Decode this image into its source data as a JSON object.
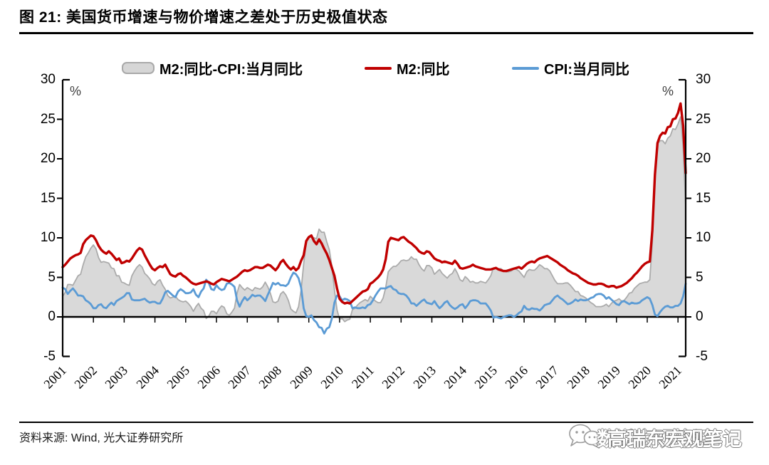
{
  "title": "图 21: 美国货币增速与物价增速之差处于历史极值状态",
  "source": "资料来源: Wind, 光大证券研究所",
  "axis_unit_left": "%",
  "axis_unit_right": "%",
  "watermark": {
    "icon": "wechat-chat-bubbles-icon",
    "layer1": "高瑞东宏观笔记",
    "layer2": "数说宏观笔记"
  },
  "legend": [
    {
      "label": "M2:同比-CPI:当月同比",
      "type": "area",
      "color": "#D6D6D6",
      "border": "#A9A9A9"
    },
    {
      "label": "M2:同比",
      "type": "line",
      "color": "#C00000"
    },
    {
      "label": "CPI:当月同比",
      "type": "line",
      "color": "#5B9BD5"
    }
  ],
  "chart_data": {
    "type": "area",
    "frequency": "monthly",
    "x_start": "2001-01",
    "x_end": "2021-04",
    "categories_years": [
      2001,
      2002,
      2003,
      2004,
      2005,
      2006,
      2007,
      2008,
      2009,
      2010,
      2011,
      2012,
      2013,
      2014,
      2015,
      2016,
      2017,
      2018,
      2019,
      2020,
      2021
    ],
    "ylim": [
      -5,
      30
    ],
    "yticks": [
      30,
      25,
      20,
      15,
      10,
      5,
      0,
      -5
    ],
    "ylabel": "%",
    "legend_position": "top",
    "grid": false,
    "series": [
      {
        "name": "M2:同比-CPI:当月同比",
        "type": "area",
        "color": "#D9D9D9",
        "border_color": "#ABABAB",
        "derived": "M2:同比 minus CPI:当月同比 (computed)"
      },
      {
        "name": "M2:同比",
        "type": "line",
        "color": "#C00000",
        "values": [
          6.3,
          6.6,
          7.0,
          7.4,
          7.6,
          7.8,
          7.9,
          8.1,
          9.2,
          9.7,
          10.0,
          10.3,
          10.2,
          9.7,
          9.0,
          8.5,
          8.2,
          8.0,
          8.3,
          8.0,
          7.6,
          7.2,
          7.4,
          6.8,
          6.9,
          7.1,
          7.0,
          7.4,
          7.9,
          8.4,
          8.7,
          8.5,
          7.8,
          7.2,
          6.6,
          6.1,
          5.9,
          6.2,
          6.4,
          6.3,
          6.6,
          6.0,
          5.4,
          5.2,
          5.1,
          5.4,
          5.5,
          5.2,
          5.0,
          4.7,
          4.4,
          4.2,
          4.1,
          4.2,
          4.3,
          4.4,
          4.5,
          4.4,
          4.2,
          4.1,
          4.4,
          4.6,
          4.8,
          4.7,
          4.6,
          4.5,
          4.7,
          4.9,
          5.1,
          5.4,
          5.7,
          5.9,
          5.8,
          5.9,
          6.1,
          6.3,
          6.3,
          6.2,
          6.2,
          6.4,
          6.6,
          6.5,
          6.2,
          5.9,
          6.3,
          6.9,
          7.2,
          6.7,
          6.3,
          6.0,
          6.3,
          5.9,
          6.2,
          7.1,
          7.8,
          9.6,
          10.1,
          10.3,
          9.6,
          9.2,
          9.8,
          9.3,
          8.6,
          8.0,
          7.2,
          6.2,
          5.2,
          3.6,
          2.3,
          1.9,
          1.7,
          1.8,
          1.7,
          2.0,
          2.3,
          2.6,
          2.9,
          3.2,
          3.3,
          3.5,
          4.2,
          4.4,
          4.7,
          5.0,
          5.4,
          6.0,
          7.3,
          9.5,
          10.0,
          9.9,
          9.8,
          9.7,
          10.0,
          10.1,
          9.8,
          9.5,
          9.3,
          9.0,
          8.7,
          8.3,
          8.1,
          8.0,
          8.3,
          8.2,
          7.8,
          7.4,
          7.2,
          7.1,
          6.9,
          7.0,
          6.9,
          6.8,
          6.7,
          7.1,
          6.7,
          6.2,
          6.1,
          6.2,
          6.3,
          6.4,
          6.6,
          6.4,
          6.3,
          6.2,
          6.1,
          6.0,
          6.0,
          6.0,
          6.1,
          6.2,
          6.0,
          5.9,
          5.8,
          5.8,
          5.9,
          6.0,
          6.1,
          6.2,
          6.3,
          6.1,
          6.4,
          6.7,
          6.9,
          7.0,
          6.9,
          7.2,
          7.4,
          7.5,
          7.6,
          7.7,
          7.5,
          7.3,
          7.1,
          6.9,
          6.6,
          6.4,
          6.2,
          5.9,
          5.7,
          5.5,
          5.4,
          5.2,
          4.9,
          4.7,
          4.5,
          4.3,
          4.2,
          4.1,
          4.1,
          4.2,
          4.2,
          4.1,
          3.9,
          3.8,
          3.9,
          3.9,
          3.7,
          3.8,
          3.9,
          4.1,
          4.3,
          4.6,
          4.9,
          5.3,
          5.6,
          6.0,
          6.4,
          6.7,
          6.9,
          7.0,
          11.0,
          18.0,
          22.0,
          22.9,
          23.3,
          23.2,
          24.0,
          24.1,
          25.0,
          25.1,
          25.8,
          27.0,
          24.2,
          18.2
        ]
      },
      {
        "name": "CPI:当月同比",
        "type": "line",
        "color": "#5B9BD5",
        "values": [
          3.7,
          3.5,
          2.9,
          3.3,
          3.6,
          3.2,
          2.7,
          2.7,
          2.6,
          2.1,
          1.9,
          1.6,
          1.1,
          1.1,
          1.5,
          1.6,
          1.2,
          1.1,
          1.5,
          1.8,
          1.5,
          2.0,
          2.2,
          2.4,
          2.6,
          3.0,
          3.0,
          2.2,
          2.1,
          2.1,
          2.1,
          2.2,
          2.3,
          2.0,
          1.8,
          1.9,
          1.9,
          1.7,
          1.7,
          2.3,
          3.1,
          3.3,
          3.0,
          2.7,
          2.5,
          3.2,
          3.5,
          3.3,
          3.0,
          3.0,
          3.1,
          3.5,
          2.8,
          2.5,
          3.2,
          3.6,
          4.7,
          4.3,
          3.5,
          3.4,
          4.0,
          3.6,
          3.4,
          3.5,
          4.2,
          4.3,
          4.1,
          3.8,
          2.1,
          1.3,
          2.0,
          2.5,
          2.1,
          2.4,
          2.8,
          2.6,
          2.7,
          2.7,
          2.4,
          2.0,
          2.8,
          3.5,
          4.3,
          4.1,
          4.3,
          4.0,
          4.0,
          3.9,
          4.2,
          5.0,
          5.6,
          5.4,
          4.9,
          3.7,
          1.1,
          0.1,
          0.0,
          0.2,
          -0.4,
          -0.7,
          -1.3,
          -1.4,
          -2.1,
          -1.5,
          -1.3,
          -0.2,
          1.8,
          2.7,
          2.6,
          2.1,
          2.3,
          2.2,
          2.0,
          1.1,
          1.2,
          1.1,
          1.1,
          1.2,
          1.1,
          1.5,
          1.6,
          2.1,
          2.7,
          3.2,
          3.6,
          3.6,
          3.6,
          3.8,
          3.9,
          3.5,
          3.4,
          3.0,
          2.9,
          2.9,
          2.7,
          2.3,
          1.7,
          1.7,
          1.4,
          1.7,
          2.0,
          2.2,
          1.8,
          1.7,
          1.6,
          2.0,
          1.5,
          1.1,
          1.4,
          1.8,
          2.0,
          1.5,
          1.2,
          1.0,
          1.2,
          1.5,
          1.6,
          1.1,
          1.5,
          2.0,
          2.1,
          2.1,
          2.0,
          1.7,
          1.7,
          1.7,
          1.3,
          0.8,
          -0.1,
          0.0,
          -0.1,
          -0.2,
          0.0,
          0.1,
          0.2,
          0.2,
          0.0,
          0.2,
          0.5,
          0.7,
          1.4,
          1.0,
          0.9,
          1.1,
          1.0,
          1.0,
          0.8,
          1.1,
          1.5,
          1.6,
          1.7,
          2.1,
          2.5,
          2.7,
          2.4,
          2.2,
          1.9,
          1.6,
          1.7,
          1.9,
          2.2,
          2.0,
          2.2,
          2.1,
          2.1,
          2.2,
          2.4,
          2.5,
          2.8,
          2.9,
          2.9,
          2.7,
          2.3,
          2.5,
          2.2,
          1.9,
          1.6,
          1.5,
          1.9,
          2.0,
          1.8,
          1.6,
          1.8,
          1.7,
          1.7,
          1.8,
          2.1,
          2.3,
          2.5,
          2.3,
          1.5,
          0.3,
          0.1,
          0.6,
          1.0,
          1.3,
          1.4,
          1.2,
          1.2,
          1.4,
          1.4,
          1.7,
          2.6,
          4.2
        ]
      }
    ]
  }
}
